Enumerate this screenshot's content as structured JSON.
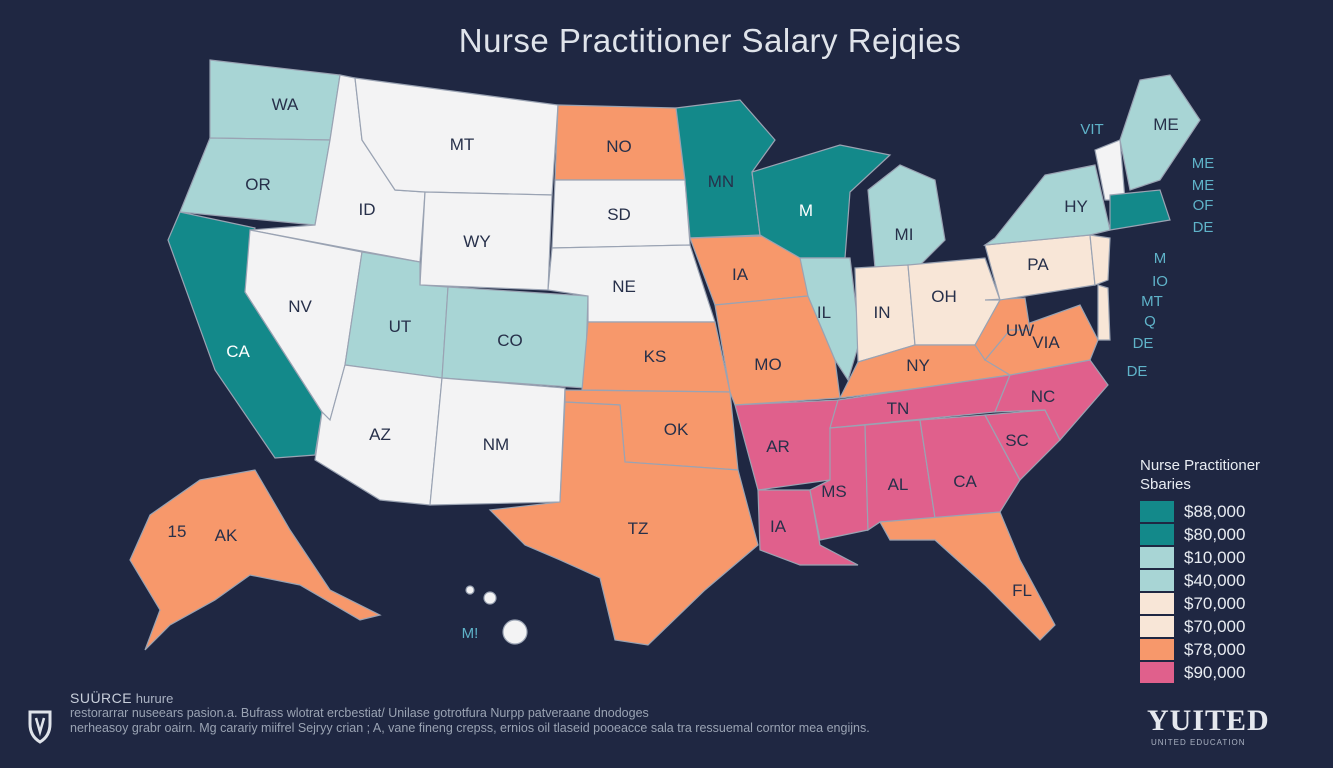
{
  "title": "Nurse Practitioner Salary Rejqies",
  "colors": {
    "white": "#f3f3f4",
    "light_teal": "#a8d5d5",
    "teal": "#13898a",
    "orange": "#f7986b",
    "peach": "#f8e6d7",
    "pink": "#e0608c",
    "background": "#1f2742"
  },
  "states": {
    "WA": "WA",
    "OR": "OR",
    "CA": "CA",
    "ID": "ID",
    "NV": "NV",
    "MT": "MT",
    "WY": "WY",
    "UT": "UT",
    "CO": "CO",
    "AZ": "AZ",
    "NM": "NM",
    "ND": "NO",
    "SD": "SD",
    "NE": "NE",
    "KS": "KS",
    "OK": "OK",
    "TX": "TZ",
    "MN": "MN",
    "IA": "IA",
    "MO": "MO",
    "AR": "AR",
    "LA": "IA",
    "WI": "M",
    "IL": "IL",
    "MI": "MI",
    "IN": "IN",
    "OH": "OH",
    "KY": "NY",
    "TN": "TN",
    "MS": "MS",
    "AL": "AL",
    "GA": "CA",
    "FL": "FL",
    "SC": "SC",
    "NC": "NC",
    "VA": "VIA",
    "WV": "UW",
    "PA": "PA",
    "NY": "HY",
    "ME": "ME",
    "AK": "AK"
  },
  "side_labels": [
    "VIT",
    "ME",
    "ME",
    "OF",
    "DE",
    "M",
    "IO",
    "MT",
    "Q",
    "DE",
    "DE"
  ],
  "ak_num": "15",
  "hi_label": "M!",
  "legend": {
    "title_line1": "Nurse Practitioner",
    "title_line2": "Sbaries",
    "items": [
      {
        "label": "$88,000",
        "color": "#13898a"
      },
      {
        "label": "$80,000",
        "color": "#13898a"
      },
      {
        "label": "$10,000",
        "color": "#a8d5d5"
      },
      {
        "label": "$40,000",
        "color": "#a8d5d5"
      },
      {
        "label": "$70,000",
        "color": "#f8e6d7"
      },
      {
        "label": "$70,000",
        "color": "#f8e6d7"
      },
      {
        "label": "$78,000",
        "color": "#f7986b"
      },
      {
        "label": "$90,000",
        "color": "#e0608c"
      }
    ]
  },
  "footer": {
    "source_label": "SUÜRCE",
    "source_value": "hurure",
    "line1": "restorarrar nuseears pasion.a. Bufrass wlotrat ercbestiat/ Unilase gotrotfura Nurpp patveraane dnodoges",
    "line2": "nerheasoy grabr oairn. Mg carariy miifrel Sejryy crian ; A, vane fineng crepss, ernios oil tlaseid pooeacce sala tra ressuemal corntor mea engijns."
  },
  "brand": {
    "name": "YUITED",
    "sub": "UNITED EDUCATION"
  }
}
